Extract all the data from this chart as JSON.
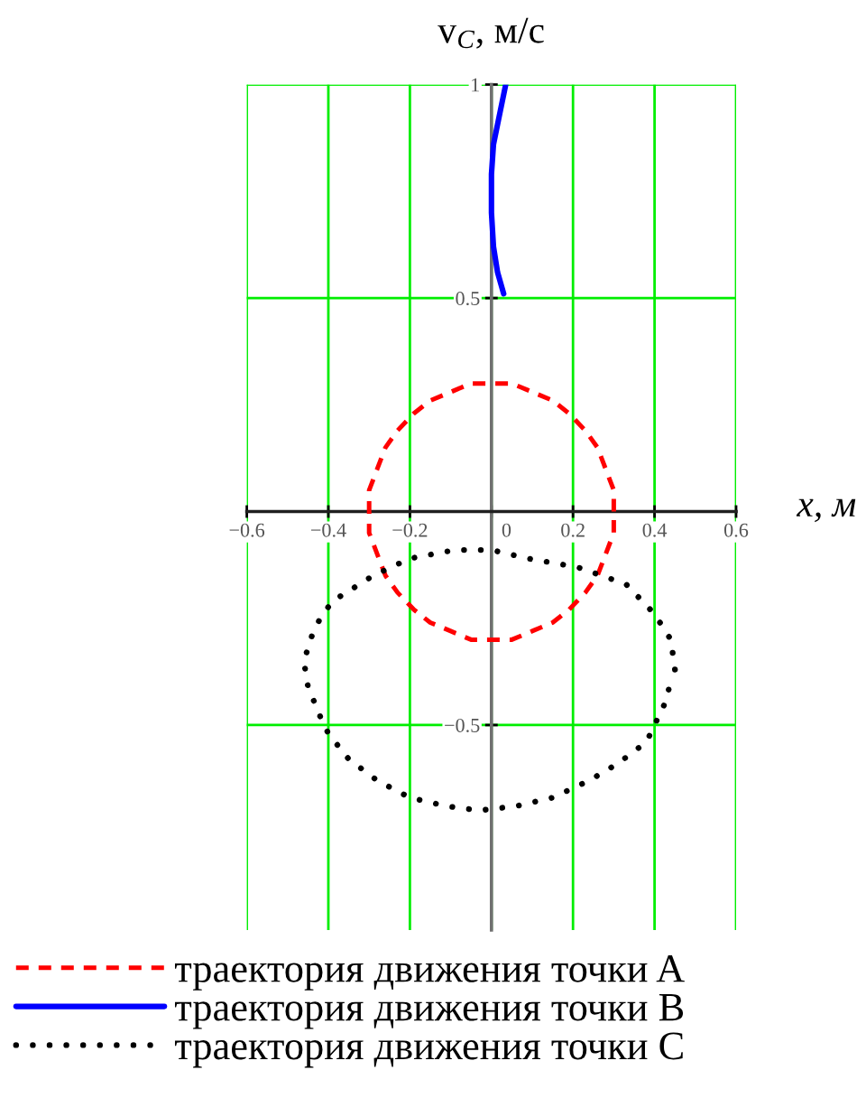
{
  "chart_data": {
    "type": "line",
    "ylabel": "v$_{C}$, м/с",
    "xlabel": "x, м",
    "xlim": [
      -0.6,
      0.6
    ],
    "ylim": [
      -0.98,
      1
    ],
    "xticks": [
      {
        "value": -0.6,
        "label": "−0.6"
      },
      {
        "value": -0.4,
        "label": "−0.4"
      },
      {
        "value": -0.2,
        "label": "−0.2"
      },
      0,
      0.2,
      0.4,
      0.6
    ],
    "yticks": [
      {
        "value": -0.5,
        "label": "−0.5"
      },
      0.5,
      1
    ],
    "grid": true,
    "legend": "bottom",
    "series": [
      {
        "name": "траектория движения точки A",
        "color": "#ff0000",
        "line_style": "dashed",
        "x": [
          0.3,
          0.3,
          0.28,
          0.26,
          0.23,
          0.19,
          0.15,
          0.1,
          0.05,
          0,
          -0.05,
          -0.1,
          -0.15,
          -0.19,
          -0.23,
          -0.26,
          -0.28,
          -0.3,
          -0.3,
          -0.3,
          -0.28,
          -0.26,
          -0.23,
          -0.19,
          -0.15,
          -0.1,
          -0.05,
          0,
          0.05,
          0.1,
          0.15,
          0.19,
          0.23,
          0.26,
          0.28,
          0.3,
          0.3
        ],
        "values": [
          0,
          0.05,
          0.1,
          0.15,
          0.19,
          0.23,
          0.26,
          0.28,
          0.3,
          0.3,
          0.3,
          0.28,
          0.26,
          0.23,
          0.19,
          0.15,
          0.1,
          0.05,
          0,
          -0.05,
          -0.1,
          -0.15,
          -0.19,
          -0.23,
          -0.26,
          -0.28,
          -0.3,
          -0.3,
          -0.3,
          -0.28,
          -0.26,
          -0.23,
          -0.19,
          -0.15,
          -0.1,
          -0.05,
          -0.02
        ]
      },
      {
        "name": "траектория движения точки B",
        "color": "#0000ff",
        "line_style": "solid",
        "x": [
          0.03,
          0.015,
          0.005,
          0,
          0,
          0.005,
          0.02,
          0.035
        ],
        "values": [
          0.51,
          0.56,
          0.62,
          0.7,
          0.79,
          0.86,
          0.93,
          1.0
        ]
      },
      {
        "name": "траектория движения точки C",
        "color": "#000000",
        "line_style": "dotted",
        "x": [
          0.45,
          0.44,
          0.4,
          0.33,
          0.21,
          0.09,
          0,
          -0.09,
          -0.2,
          -0.29,
          -0.39,
          -0.42,
          -0.44,
          -0.46,
          -0.45,
          -0.42,
          -0.4,
          -0.35,
          -0.28,
          -0.2,
          -0.11,
          -0.03,
          0.06,
          0.15,
          0.24,
          0.31,
          0.38,
          0.4,
          0.43,
          0.44
        ],
        "values": [
          -0.37,
          -0.3,
          -0.24,
          -0.17,
          -0.13,
          -0.11,
          -0.09,
          -0.09,
          -0.11,
          -0.15,
          -0.21,
          -0.25,
          -0.29,
          -0.35,
          -0.41,
          -0.48,
          -0.52,
          -0.58,
          -0.63,
          -0.67,
          -0.69,
          -0.7,
          -0.69,
          -0.67,
          -0.63,
          -0.59,
          -0.54,
          -0.5,
          -0.44,
          -0.39
        ]
      }
    ]
  }
}
